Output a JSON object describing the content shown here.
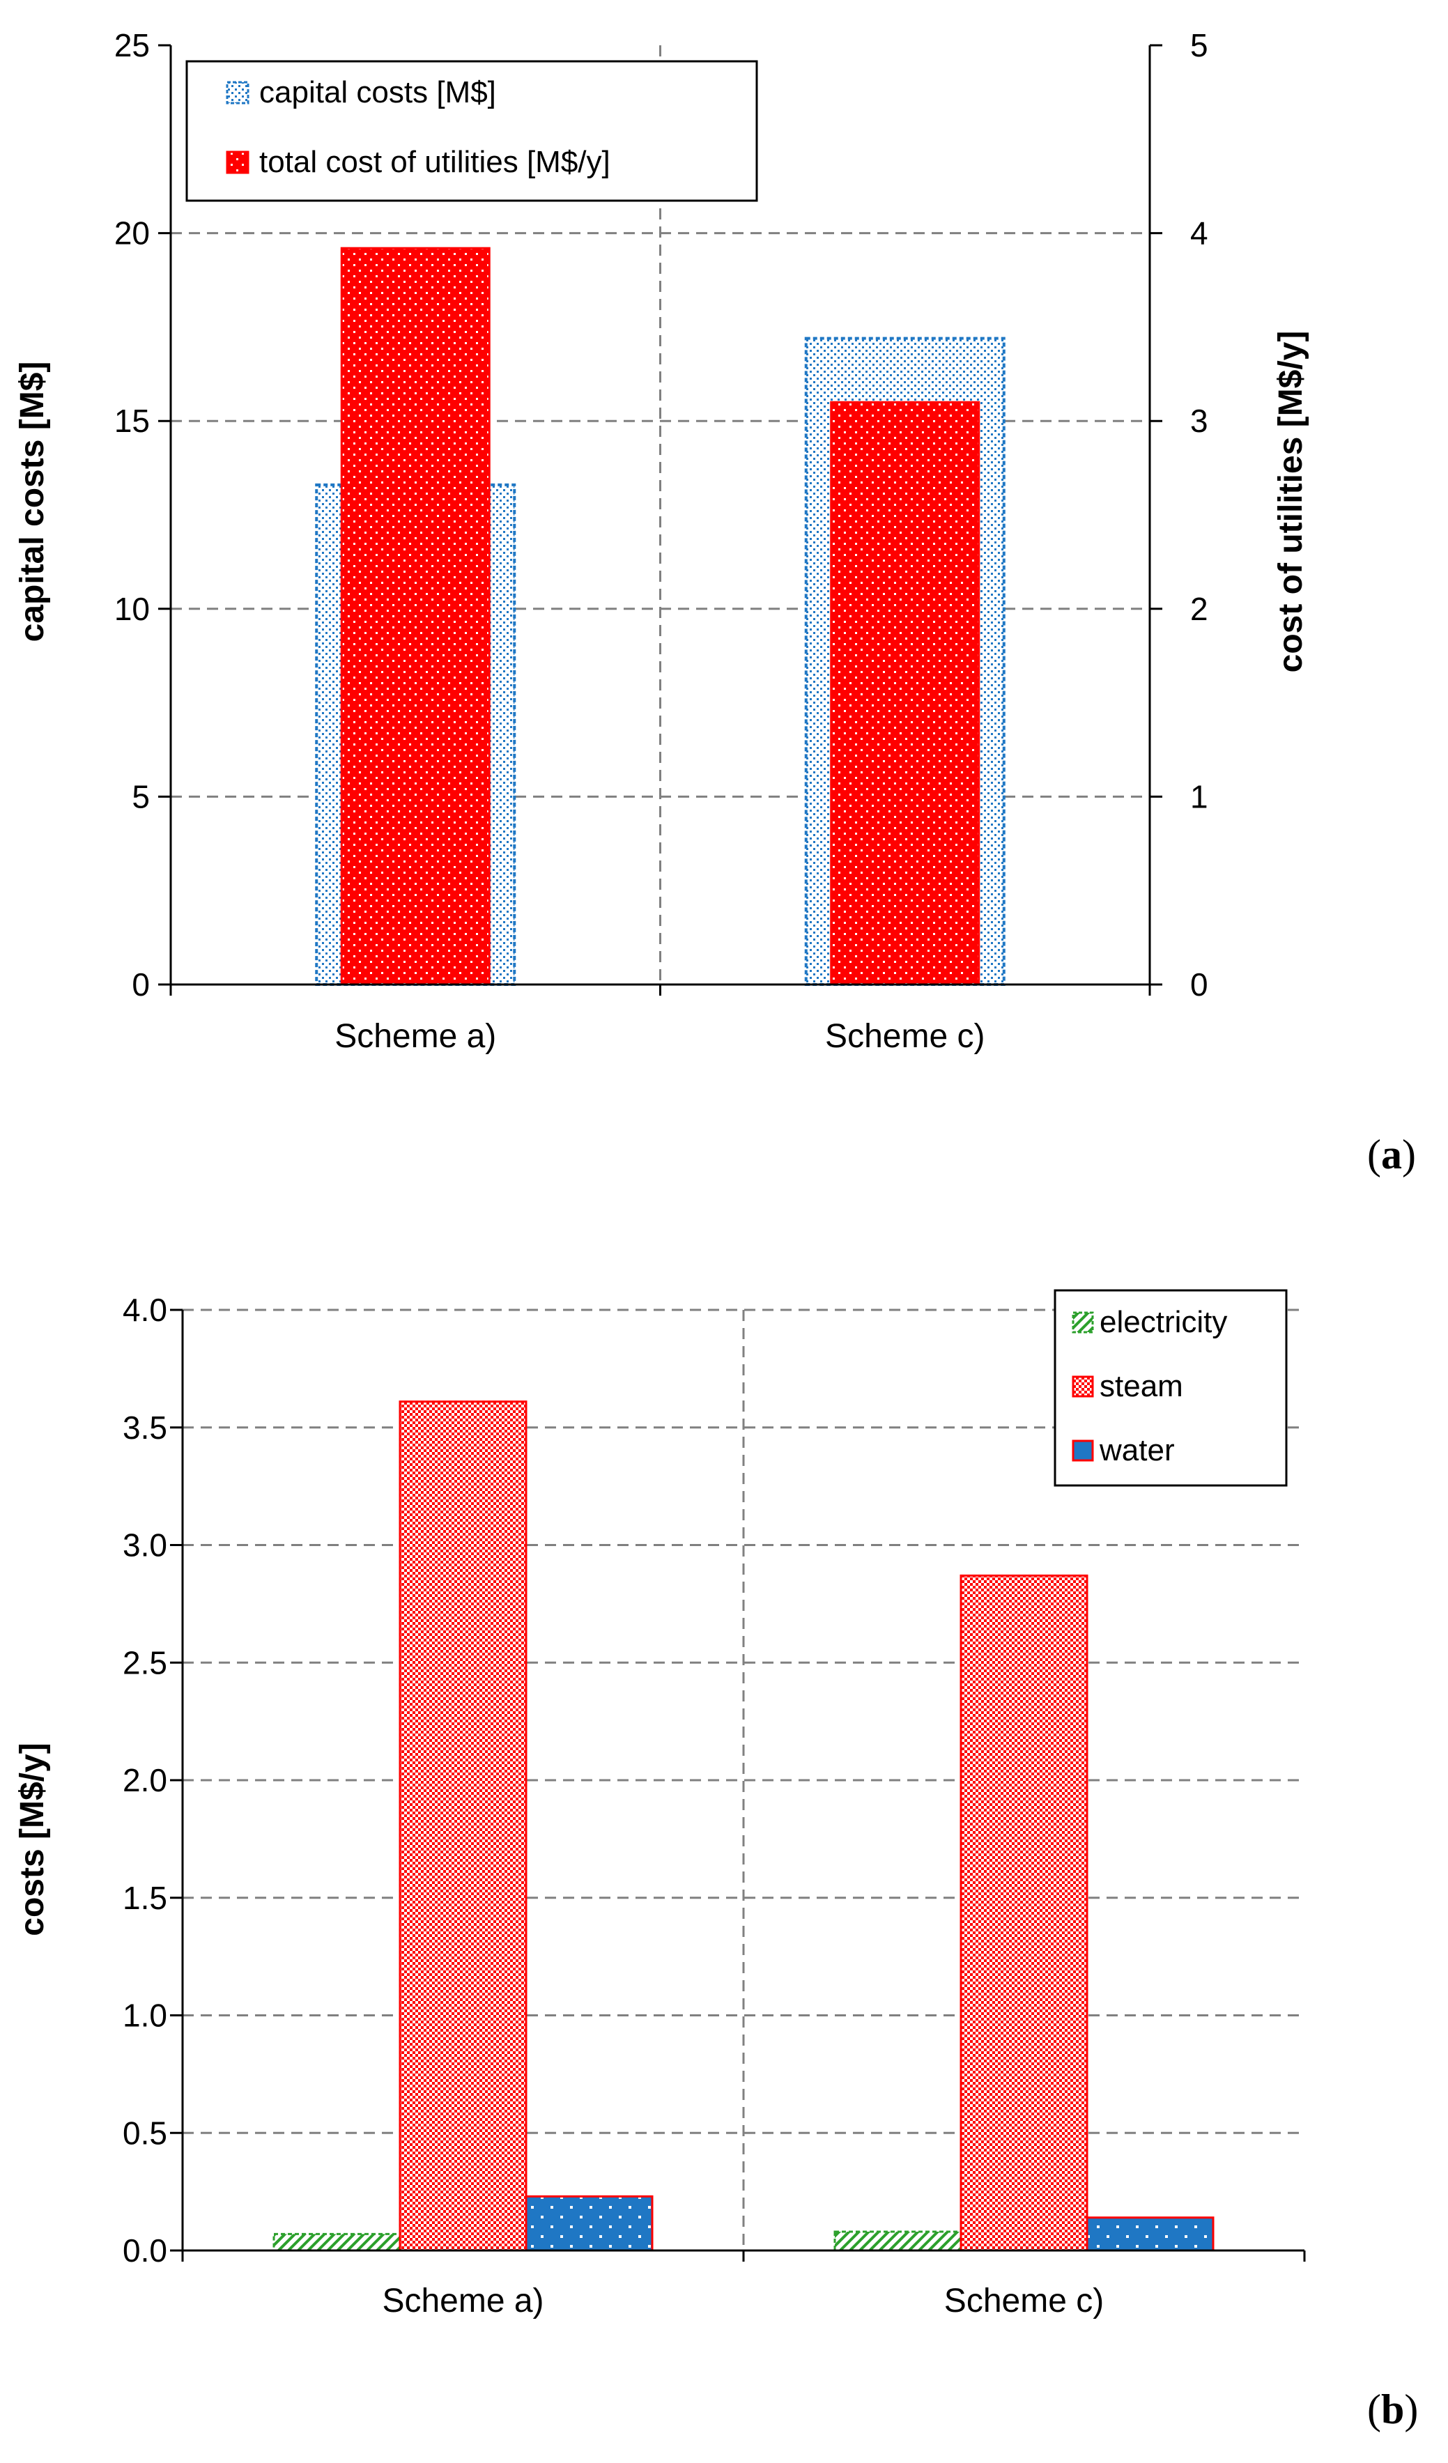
{
  "chart_data": [
    {
      "type": "bar",
      "panel_label": "a",
      "categories": [
        "Scheme a)",
        "Scheme c)"
      ],
      "series": [
        {
          "name": "capital costs [M$]",
          "axis": "left",
          "values": [
            13.3,
            17.2
          ],
          "color": "#1f77c4",
          "pattern": "dotted-outline"
        },
        {
          "name": "total cost of utilities [M$/y]",
          "axis": "right",
          "values": [
            3.92,
            3.1
          ],
          "color": "#ff0000",
          "pattern": "dotted-solid"
        }
      ],
      "ylabel": "capital costs [M$]",
      "y2label": "cost of utilities [M$/y]",
      "ylim": [
        0,
        25
      ],
      "y2lim": [
        0,
        5
      ],
      "yticks": [
        "0",
        "5",
        "10",
        "15",
        "20",
        "25"
      ],
      "y2ticks": [
        "0",
        "1",
        "2",
        "3",
        "4",
        "5"
      ],
      "grid": true,
      "legend_position": "top-left"
    },
    {
      "type": "bar",
      "panel_label": "b",
      "categories": [
        "Scheme a)",
        "Scheme c)"
      ],
      "series": [
        {
          "name": "electricity",
          "values": [
            0.07,
            0.08
          ],
          "color": "#2ca02c",
          "pattern": "hatched"
        },
        {
          "name": "steam",
          "values": [
            3.61,
            2.87
          ],
          "color": "#ff0000",
          "pattern": "checkered"
        },
        {
          "name": "water",
          "values": [
            0.23,
            0.14
          ],
          "color": "#1f77c4",
          "pattern": "dotted-solid"
        }
      ],
      "ylabel": "costs [M$/y]",
      "ylim": [
        0,
        4
      ],
      "yticks": [
        "0.0",
        "0.5",
        "1.0",
        "1.5",
        "2.0",
        "2.5",
        "3.0",
        "3.5",
        "4.0"
      ],
      "grid": true,
      "legend_position": "top-right"
    }
  ]
}
